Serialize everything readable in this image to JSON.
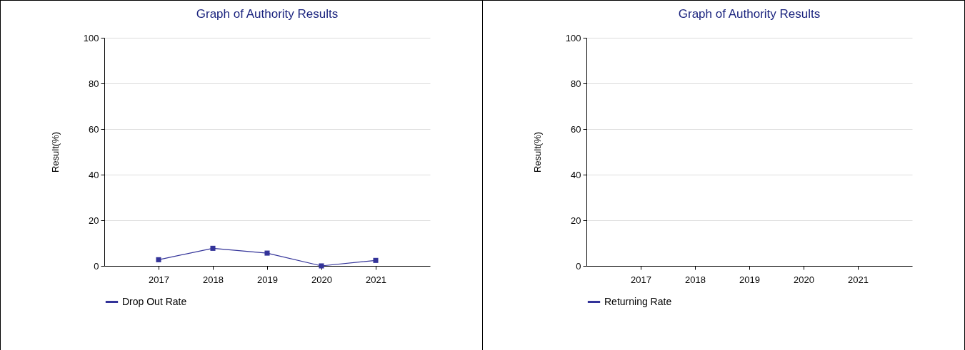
{
  "chart_data": [
    {
      "type": "line",
      "title": "Graph of Authority Results",
      "ylabel": "Result(%)",
      "categories": [
        "2017",
        "2018",
        "2019",
        "2020",
        "2021"
      ],
      "series": [
        {
          "name": "Drop Out Rate",
          "color": "#333399",
          "values": [
            2.7,
            7.7,
            5.6,
            0,
            2.4
          ]
        }
      ],
      "ylim": [
        0,
        100
      ],
      "yticks": [
        0,
        20,
        40,
        60,
        80,
        100
      ],
      "grid": "y",
      "legend": "bottom",
      "marker": "square"
    },
    {
      "type": "line",
      "title": "Graph of Authority Results",
      "ylabel": "Result(%)",
      "categories": [
        "2017",
        "2018",
        "2019",
        "2020",
        "2021"
      ],
      "series": [
        {
          "name": "Returning Rate",
          "color": "#333399",
          "values": [
            null,
            null,
            null,
            null,
            null
          ]
        }
      ],
      "ylim": [
        0,
        100
      ],
      "yticks": [
        0,
        20,
        40,
        60,
        80,
        100
      ],
      "grid": "y",
      "legend": "bottom",
      "marker": "square"
    }
  ]
}
